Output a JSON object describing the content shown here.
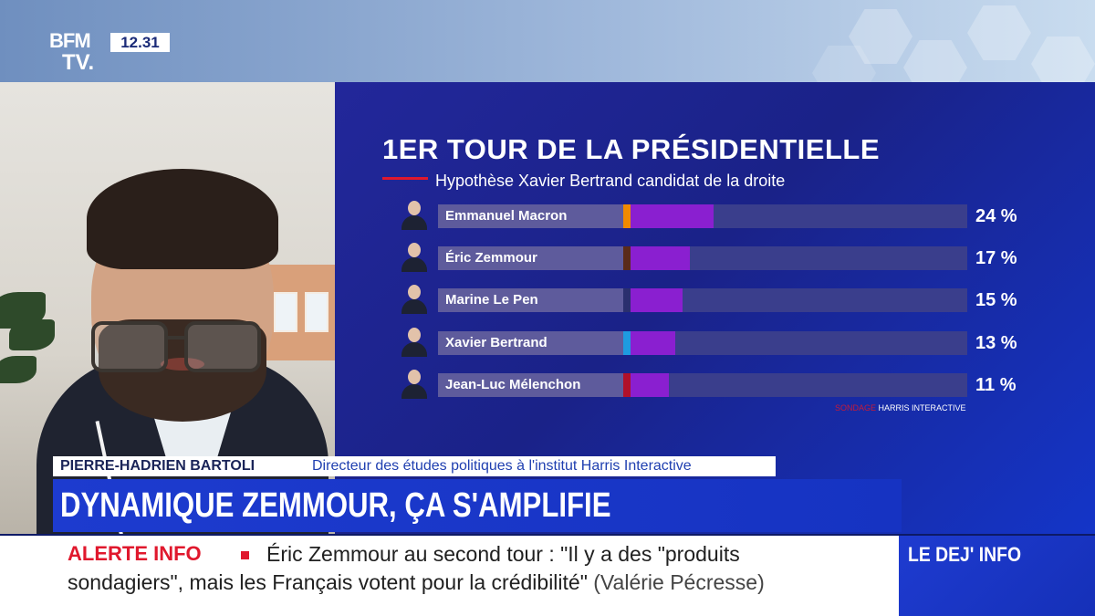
{
  "channel": {
    "logo_line1": "BFM",
    "logo_line2": "TV.",
    "time": "12.31"
  },
  "chart_data": {
    "type": "bar",
    "orientation": "horizontal",
    "title": "1ER TOUR DE LA PRÉSIDENTIELLE",
    "subtitle": "Hypothèse Xavier Bertrand candidat de la droite",
    "categories": [
      "Emmanuel Macron",
      "Éric Zemmour",
      "Marine Le Pen",
      "Xavier Bertrand",
      "Jean-Luc Mélenchon"
    ],
    "values": [
      24,
      17,
      15,
      13,
      11
    ],
    "labels": [
      "24 %",
      "17 %",
      "15 %",
      "13 %",
      "11 %"
    ],
    "xlim": [
      0,
      100
    ],
    "bar_color": "#8a1fd0",
    "party_colors": [
      "#f08a00",
      "#5a2b1a",
      "#2b2f6e",
      "#1e9be0",
      "#b0102a"
    ],
    "source_prefix": "SONDAGE",
    "source": "HARRIS INTERACTIVE"
  },
  "lower_third": {
    "guest_name": "PIERRE-HADRIEN BARTOLI",
    "guest_role": "Directeur des études politiques à l'institut Harris Interactive",
    "headline": "DYNAMIQUE ZEMMOUR, ÇA S'AMPLIFIE"
  },
  "ticker": {
    "label": "ALERTE INFO",
    "line1": "Éric Zemmour au second tour : \"Il y a des \"produits",
    "line2": "sondagiers\", mais les Français votent pour la crédibilité\"",
    "attribution": "(Valérie Pécresse)"
  },
  "program": {
    "label": "LE DEJ' INFO"
  }
}
